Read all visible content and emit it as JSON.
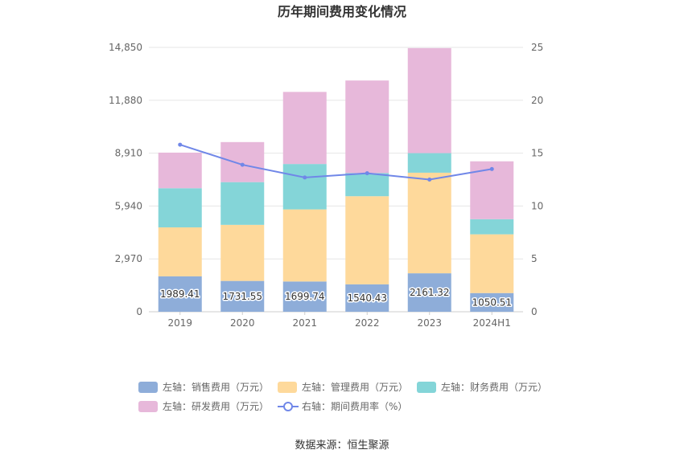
{
  "chart_data": {
    "type": "bar",
    "stacked": true,
    "title": "历年期间费用变化情况",
    "categories": [
      "2019",
      "2020",
      "2021",
      "2022",
      "2023",
      "2024H1"
    ],
    "y_left": {
      "ticks": [
        "0",
        "2,970",
        "5,940",
        "8,910",
        "11,880",
        "14,850"
      ],
      "range": [
        0,
        14850
      ]
    },
    "y_right": {
      "ticks": [
        "0",
        "5",
        "10",
        "15",
        "20",
        "25"
      ],
      "range": [
        0,
        25
      ]
    },
    "series": [
      {
        "name": "左轴：销售费用（万元）",
        "axis": "left",
        "color": "#8eadd9",
        "values": [
          1989.41,
          1731.55,
          1699.74,
          1540.43,
          2161.32,
          1050.51
        ],
        "labels": [
          "1989.41",
          "1731.55",
          "1699.74",
          "1540.43",
          "2161.32",
          "1050.51"
        ]
      },
      {
        "name": "左轴：管理费用（万元）",
        "axis": "left",
        "color": "#fed99b",
        "values": [
          2750,
          3150,
          4050,
          4950,
          5650,
          3300
        ]
      },
      {
        "name": "左轴：财务费用（万元）",
        "axis": "left",
        "color": "#84d5d8",
        "values": [
          2200,
          2400,
          2550,
          1300,
          1100,
          850
        ]
      },
      {
        "name": "左轴：研发费用（万元）",
        "axis": "left",
        "color": "#e7b8da",
        "values": [
          2000,
          2250,
          4050,
          5200,
          5900,
          3250
        ]
      },
      {
        "name": "右轴：期间费用率（%）",
        "axis": "right",
        "type": "line",
        "color": "#7087e8",
        "values": [
          15.8,
          13.9,
          12.7,
          13.1,
          12.5,
          13.5
        ]
      }
    ]
  },
  "source_text": "数据来源：恒生聚源"
}
